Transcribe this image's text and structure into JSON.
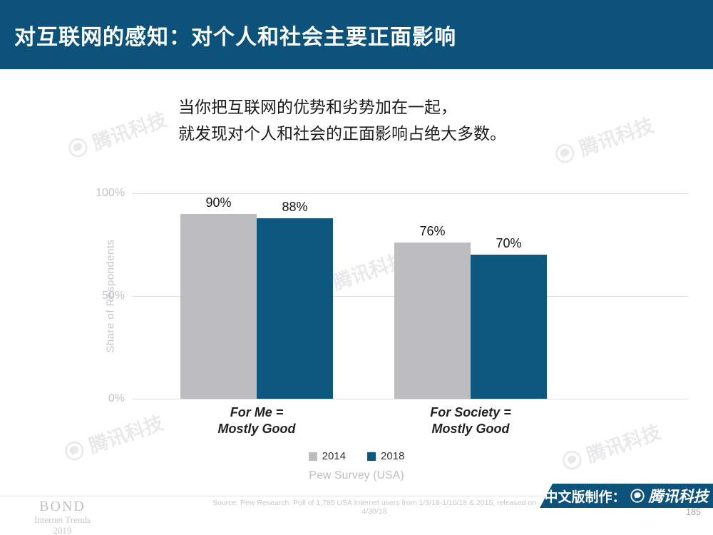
{
  "header": {
    "title": "对互联网的感知：对个人和社会主要正面影响"
  },
  "subtitle": {
    "line1": "当你把互联网的优势和劣势加在一起，",
    "line2": "就发现对个人和社会的正面影响占绝大多数。"
  },
  "chart_data": {
    "type": "bar",
    "title": "",
    "ylabel": "Share of Respondents",
    "xlabel": "Pew Survey (USA)",
    "ylim": [
      0,
      100
    ],
    "yticks": [
      "100%",
      "50%",
      "0%"
    ],
    "grid": true,
    "legend_position": "bottom",
    "categories": [
      "For Me =\nMostly Good",
      "For Society =\nMostly Good"
    ],
    "series": [
      {
        "name": "2014",
        "color": "#bdbdbf",
        "values": [
          90,
          76
        ],
        "labels": [
          "90%",
          "76%"
        ]
      },
      {
        "name": "2018",
        "color": "#0e5880",
        "values": [
          88,
          70
        ],
        "labels": [
          "88%",
          "70%"
        ]
      }
    ]
  },
  "footer": {
    "logo": {
      "name": "BOND",
      "line2": "Internet Trends",
      "line3": "2019"
    },
    "source": "Source: Pew Research.  Poll of 1,785 USA Internet users from 1/3/18-1/10/18 & 2015, released on 4/30/18",
    "banner": {
      "prefix": "中文版制作：",
      "brand": "腾讯科技",
      "bg_color": "#0d527a"
    },
    "page_number": "185"
  },
  "watermark": {
    "text": "腾讯科技"
  },
  "colors": {
    "header_bg": "#0d527a",
    "accent_teal": "#0e5880",
    "bar_gray": "#bdbdbf"
  }
}
